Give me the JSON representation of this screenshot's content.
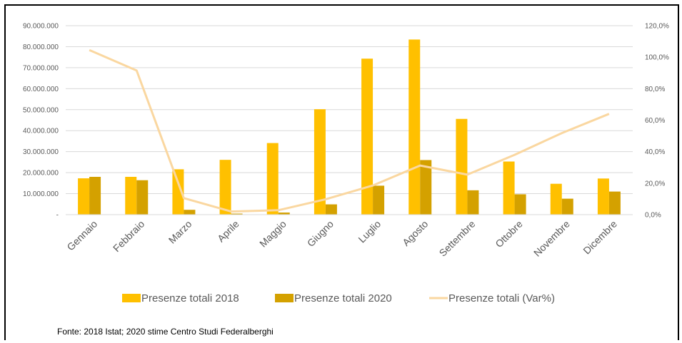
{
  "chart_data": {
    "type": "bar",
    "categories": [
      "Gennaio",
      "Febbraio",
      "Marzo",
      "Aprile",
      "Maggio",
      "Giugno",
      "Luglio",
      "Agosto",
      "Settembre",
      "Ottobre",
      "Novembre",
      "Dicembre"
    ],
    "series": [
      {
        "name": "Presenze totali 2018",
        "type": "bar",
        "axis": "left",
        "color": "#ffc000",
        "values": [
          17300000,
          18000000,
          21600000,
          26100000,
          34100000,
          50200000,
          74300000,
          83400000,
          45600000,
          25300000,
          14700000,
          17200000
        ]
      },
      {
        "name": "Presenze totali 2020",
        "type": "bar",
        "axis": "left",
        "color": "#d4a100",
        "values": [
          18000000,
          16400000,
          2300000,
          500000,
          1000000,
          4900000,
          13800000,
          26000000,
          11600000,
          9700000,
          7600000,
          11000000
        ]
      },
      {
        "name": "Presenze totali (Var%)",
        "type": "line",
        "axis": "right",
        "color": "#fad7a0",
        "values": [
          104.5,
          91.5,
          10.5,
          2.0,
          2.8,
          9.8,
          18.5,
          31.2,
          25.4,
          38.0,
          51.8,
          64.0
        ]
      }
    ],
    "y_left": {
      "min": 0,
      "max": 90000000,
      "ticks": [
        "-",
        "10.000.000",
        "20.000.000",
        "30.000.000",
        "40.000.000",
        "50.000.000",
        "60.000.000",
        "70.000.000",
        "80.000.000",
        "90.000.000"
      ]
    },
    "y_right": {
      "min": 0,
      "max": 120,
      "ticks": [
        "0,0%",
        "20,0%",
        "40,0%",
        "60,0%",
        "80,0%",
        "100,0%",
        "120,0%"
      ]
    },
    "grid": true,
    "legend_position": "bottom"
  },
  "source": "Fonte: 2018 Istat; 2020 stime Centro Studi Federalberghi"
}
